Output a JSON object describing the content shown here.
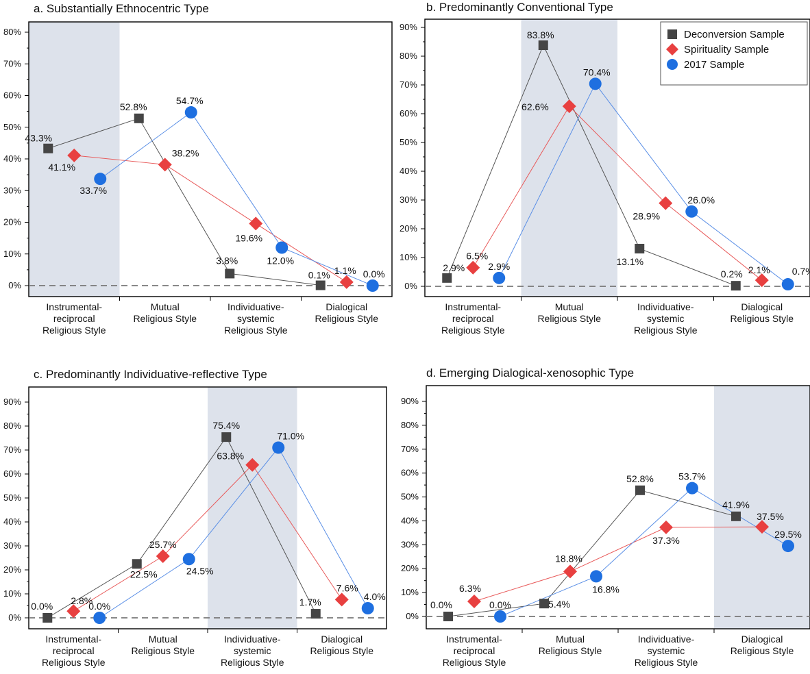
{
  "legend": {
    "items": [
      {
        "label": "Deconversion Sample",
        "color": "#454545",
        "marker": "square"
      },
      {
        "label": "Spirituality Sample",
        "color": "#e84040",
        "marker": "diamond"
      },
      {
        "label": "2017 Sample",
        "color": "#1e6fe0",
        "marker": "circle"
      }
    ]
  },
  "chart_data": [
    {
      "type": "line",
      "title": "a. Substantially Ethnocentric Type",
      "categories": [
        [
          "Instrumental-",
          "reciprocal",
          "Religious Style"
        ],
        [
          "Mutual",
          "Religious Style"
        ],
        [
          "Individuative-",
          "systemic",
          "Religious Style"
        ],
        [
          "Dialogical",
          "Religious Style"
        ]
      ],
      "highlight_category": 0,
      "ylim": [
        0,
        80
      ],
      "yticks": [
        "0%",
        "10%",
        "20%",
        "30%",
        "40%",
        "50%",
        "60%",
        "70%",
        "80%"
      ],
      "series": [
        {
          "name": "Deconversion Sample",
          "values": [
            43.3,
            52.8,
            3.8,
            0.1
          ],
          "labels": [
            "43.3%",
            "52.8%",
            "3.8%",
            "0.1%"
          ]
        },
        {
          "name": "Spirituality Sample",
          "values": [
            41.1,
            38.2,
            19.6,
            1.1
          ],
          "labels": [
            "41.1%",
            "38.2%",
            "19.6%",
            "1.1%"
          ]
        },
        {
          "name": "2017 Sample",
          "values": [
            33.7,
            54.7,
            12.0,
            0.0
          ],
          "labels": [
            "33.7%",
            "54.7%",
            "12.0%",
            "0.0%"
          ]
        }
      ]
    },
    {
      "type": "line",
      "title": "b. Predominantly Conventional Type",
      "categories": [
        [
          "Instrumental-",
          "reciprocal",
          "Religious Style"
        ],
        [
          "Mutual",
          "Religious Style"
        ],
        [
          "Individuative-",
          "systemic",
          "Religious Style"
        ],
        [
          "Dialogical",
          "Religious Style"
        ]
      ],
      "highlight_category": 1,
      "ylim": [
        0,
        90
      ],
      "yticks": [
        "0%",
        "10%",
        "20%",
        "30%",
        "40%",
        "50%",
        "60%",
        "70%",
        "80%",
        "90%"
      ],
      "legend": "top-right",
      "series": [
        {
          "name": "Deconversion Sample",
          "values": [
            2.9,
            83.8,
            13.1,
            0.2
          ],
          "labels": [
            "2.9%",
            "83.8%",
            "13.1%",
            "0.2%"
          ]
        },
        {
          "name": "Spirituality Sample",
          "values": [
            6.5,
            62.6,
            28.9,
            2.1
          ],
          "labels": [
            "6.5%",
            "62.6%",
            "28.9%",
            "2.1%"
          ]
        },
        {
          "name": "2017 Sample",
          "values": [
            2.9,
            70.4,
            26.0,
            0.7
          ],
          "labels": [
            "2.9%",
            "70.4%",
            "26.0%",
            "0.7%"
          ]
        }
      ]
    },
    {
      "type": "line",
      "title": "c. Predominantly Individuative-reflective Type",
      "categories": [
        [
          "Instrumental-",
          "reciprocal",
          "Religious Style"
        ],
        [
          "Mutual",
          "Religious Style"
        ],
        [
          "Individuative-",
          "systemic",
          "Religious Style"
        ],
        [
          "Dialogical",
          "Religious Style"
        ]
      ],
      "highlight_category": 2,
      "ylim": [
        0,
        90
      ],
      "yticks": [
        "0%",
        "10%",
        "20%",
        "30%",
        "40%",
        "50%",
        "60%",
        "70%",
        "80%",
        "90%"
      ],
      "series": [
        {
          "name": "Deconversion Sample",
          "values": [
            0.0,
            22.5,
            75.4,
            1.7
          ],
          "labels": [
            "0.0%",
            "22.5%",
            "75.4%",
            "1.7%"
          ]
        },
        {
          "name": "Spirituality Sample",
          "values": [
            2.8,
            25.7,
            63.8,
            7.6
          ],
          "labels": [
            "2.8%",
            "25.7%",
            "63.8%",
            "7.6%"
          ]
        },
        {
          "name": "2017 Sample",
          "values": [
            0.0,
            24.5,
            71.0,
            4.0
          ],
          "labels": [
            "0.0%",
            "24.5%",
            "71.0%",
            "4.0%"
          ]
        }
      ]
    },
    {
      "type": "line",
      "title": "d. Emerging Dialogical-xenosophic Type",
      "categories": [
        [
          "Instrumental-",
          "reciprocal",
          "Religious Style"
        ],
        [
          "Mutual",
          "Religious Style"
        ],
        [
          "Individuative-",
          "systemic",
          "Religious Style"
        ],
        [
          "Dialogical",
          "Religious Style"
        ]
      ],
      "highlight_category": 3,
      "ylim": [
        0,
        90
      ],
      "yticks": [
        "0%",
        "10%",
        "20%",
        "30%",
        "40%",
        "50%",
        "60%",
        "70%",
        "80%",
        "90%"
      ],
      "series": [
        {
          "name": "Deconversion Sample",
          "values": [
            0.0,
            5.4,
            52.8,
            41.9
          ],
          "labels": [
            "0.0%",
            "5.4%",
            "52.8%",
            "41.9%"
          ]
        },
        {
          "name": "Spirituality Sample",
          "values": [
            6.3,
            18.8,
            37.3,
            37.5
          ],
          "labels": [
            "6.3%",
            "18.8%",
            "37.3%",
            "37.5%"
          ]
        },
        {
          "name": "2017 Sample",
          "values": [
            0.0,
            16.8,
            53.7,
            29.5
          ],
          "labels": [
            "0.0%",
            "16.8%",
            "53.7%",
            "29.5%"
          ]
        }
      ]
    }
  ]
}
